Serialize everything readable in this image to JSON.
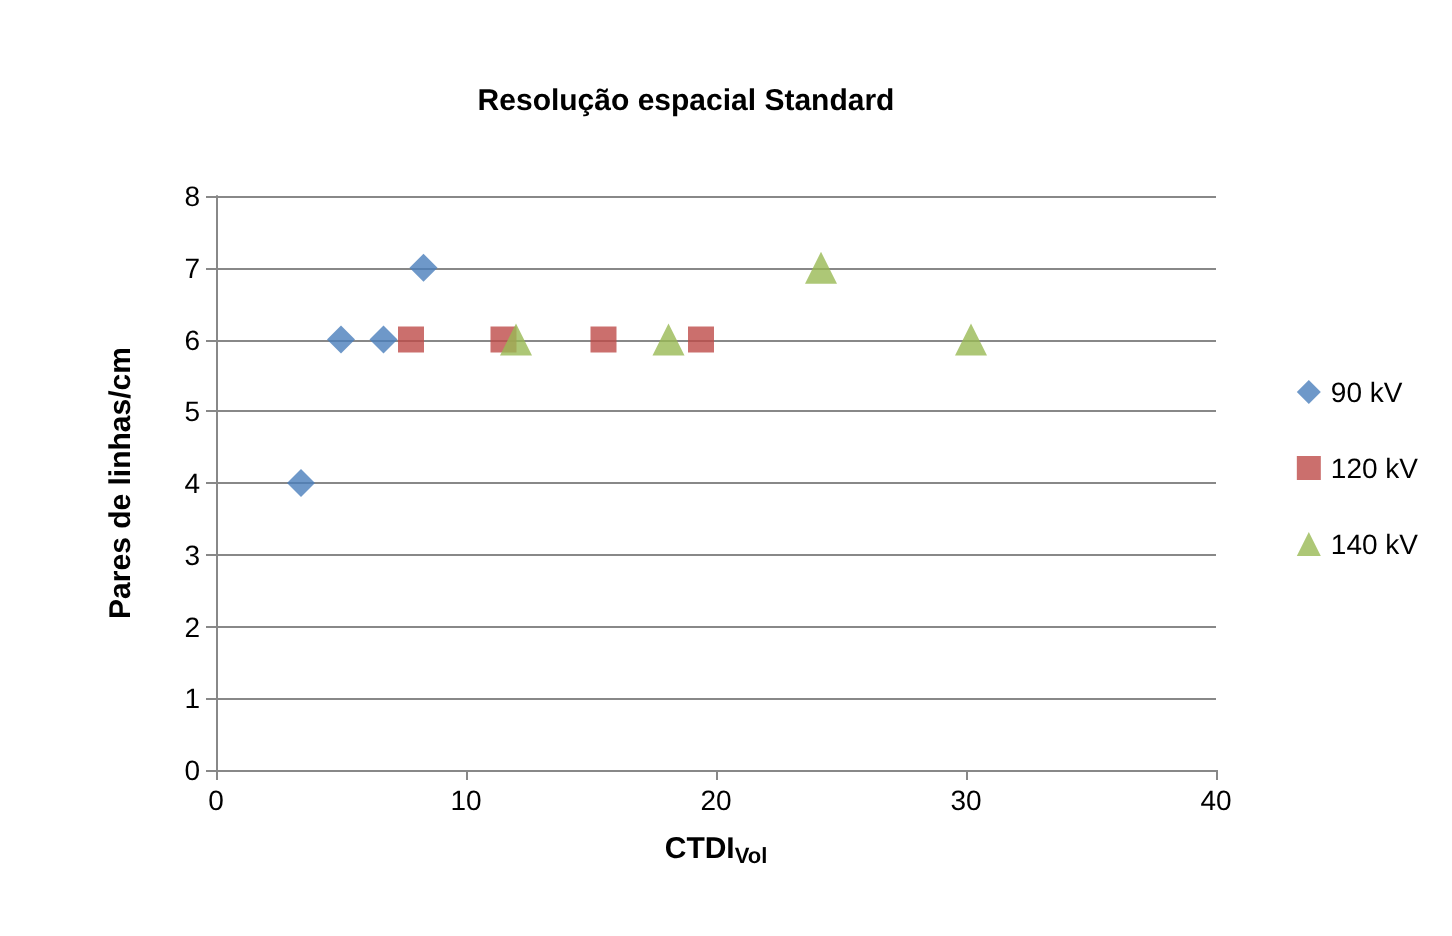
{
  "chart_data": {
    "type": "scatter",
    "title": "Resolução espacial Standard",
    "xlabel": "CTDI$_{Vol}$",
    "ylabel": "Pares de linhas/cm",
    "xlim": [
      0,
      40
    ],
    "xticks": [
      0,
      10,
      20,
      30,
      40
    ],
    "ylim": [
      0,
      8
    ],
    "yticks": [
      0,
      1,
      2,
      3,
      4,
      5,
      6,
      7,
      8
    ],
    "grid": "y",
    "legend": "right",
    "series": [
      {
        "name": "90 kV",
        "color": "#4a7ebb",
        "marker": "diamond",
        "x": [
          3.4,
          5.0,
          6.7,
          8.3
        ],
        "values": [
          4,
          6,
          6,
          7
        ]
      },
      {
        "name": "120 kV",
        "color": "#be4b48",
        "marker": "square",
        "x": [
          7.8,
          11.5,
          15.5,
          19.4
        ],
        "values": [
          6,
          6,
          6,
          6
        ]
      },
      {
        "name": "140 kV",
        "color": "#98b954",
        "marker": "triangle",
        "x": [
          12.0,
          18.1,
          24.2,
          30.2
        ],
        "values": [
          6,
          6,
          7,
          6
        ]
      }
    ]
  }
}
